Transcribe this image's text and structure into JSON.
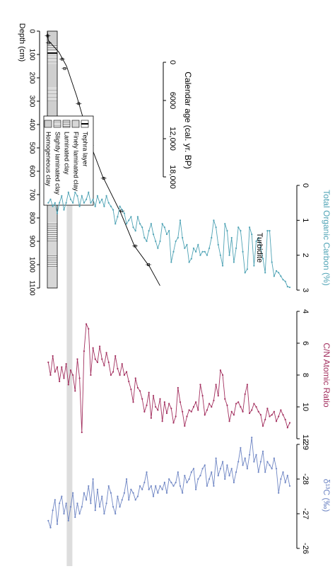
{
  "axis_titles": {
    "depth": "Depth (cm)",
    "age": "Calendar age (cal. yr. BP)",
    "toc": "Total Organic Carbon (%)",
    "cn": "C/N Atomic Ratio",
    "d13c": "δ¹³C (‰)"
  },
  "turbidite_label": "Turbidite",
  "legend": {
    "entries": [
      {
        "label": "Tephra layer",
        "pattern": "tephra"
      },
      {
        "label": "Finely laminated clay",
        "pattern": "fine"
      },
      {
        "label": "Laminated clay",
        "pattern": "laminated"
      },
      {
        "label": "Slightly laminated clay",
        "pattern": "slight"
      },
      {
        "label": "Homogeneous clay",
        "pattern": "homogeneous"
      }
    ]
  },
  "colors": {
    "toc": "#4fa3b5",
    "cn": "#a3305f",
    "d13c": "#6f86c4",
    "age_line": "#000000",
    "turbidite_band": "#dddddd",
    "core_base": "#cfcfcf",
    "axis": "#000000"
  },
  "chart_data": [
    {
      "type": "line",
      "panel": "age-depth",
      "title": "",
      "x_is": "depth_cm",
      "xlabel": "Depth (cm)",
      "ylabel": "Calendar age (cal. yr. BP)",
      "depth_ticks": [
        0,
        100,
        200,
        300,
        400,
        500,
        600,
        700,
        800,
        900,
        1000,
        1100
      ],
      "age_ticks": [
        0,
        6000,
        12000,
        18000
      ],
      "age_tick_labels": [
        "0",
        "6000",
        "12,000",
        "18,000"
      ],
      "xlim": [
        0,
        1100
      ],
      "ylim": [
        0,
        18000
      ],
      "x": [
        0,
        40,
        90,
        150,
        280,
        420,
        490,
        620,
        780,
        920,
        1010,
        1090
      ],
      "y": [
        0,
        150,
        1800,
        3000,
        4600,
        6100,
        6800,
        8600,
        11500,
        13600,
        16000,
        17600
      ],
      "dated_points": [
        {
          "depth": 20,
          "age": 50
        },
        {
          "depth": 50,
          "age": 200
        },
        {
          "depth": 120,
          "age": 2300
        },
        {
          "depth": 160,
          "age": 2700
        },
        {
          "depth": 310,
          "age": 4900
        },
        {
          "depth": 410,
          "age": 6100
        },
        {
          "depth": 490,
          "age": 6800
        },
        {
          "depth": 630,
          "age": 8800
        },
        {
          "depth": 770,
          "age": 11600
        },
        {
          "depth": 920,
          "age": 13700
        },
        {
          "depth": 1000,
          "age": 15800
        }
      ]
    },
    {
      "type": "line",
      "panel": "toc",
      "title": "",
      "xlabel": "Total Organic Carbon (%)",
      "xlim": [
        0,
        3
      ],
      "ticks": [
        0,
        1,
        2,
        3
      ],
      "depth": [
        0,
        10,
        20,
        30,
        40,
        50,
        60,
        70,
        80,
        90,
        100,
        110,
        120,
        130,
        140,
        150,
        160,
        170,
        180,
        190,
        200,
        210,
        220,
        230,
        240,
        250,
        260,
        270,
        280,
        290,
        300,
        310,
        320,
        330,
        340,
        350,
        360,
        370,
        380,
        390,
        400,
        410,
        420,
        430,
        440,
        450,
        460,
        470,
        480,
        490,
        500,
        510,
        520,
        530,
        540,
        550,
        560,
        570,
        580,
        590,
        600,
        610,
        620,
        630,
        640,
        650,
        660,
        670,
        680,
        690,
        700,
        710,
        720,
        730,
        740,
        750,
        760,
        770,
        780,
        790,
        800,
        810,
        820,
        830,
        840,
        850,
        860,
        870,
        880,
        890,
        900,
        910,
        920,
        930,
        940,
        950,
        960,
        970,
        980,
        990,
        1000,
        1010,
        1020,
        1030,
        1040,
        1050,
        1060,
        1070,
        1080
      ],
      "values": [
        2.92,
        2.9,
        2.75,
        2.7,
        2.6,
        2.5,
        2.45,
        2.6,
        2.2,
        1.3,
        1.3,
        2.5,
        2.1,
        1.8,
        1.5,
        1.6,
        2.3,
        1.4,
        1.2,
        2.4,
        2.5,
        1.9,
        1.3,
        1.2,
        1.8,
        2.2,
        1.5,
        2.0,
        1.3,
        1.1,
        2.3,
        2.0,
        1.7,
        1.2,
        1.0,
        1.5,
        1.8,
        2.0,
        1.9,
        1.9,
        2.0,
        1.7,
        1.9,
        1.8,
        2.1,
        2.2,
        1.7,
        1.8,
        1.5,
        1.0,
        1.5,
        1.6,
        1.9,
        2.2,
        1.3,
        1.4,
        1.2,
        1.1,
        1.6,
        1.8,
        1.6,
        1.4,
        1.1,
        1.3,
        1.6,
        1.5,
        1.2,
        1.1,
        0.9,
        1.3,
        1.2,
        0.9,
        1.0,
        1.1,
        0.8,
        0.7,
        0.6,
        0.9,
        1.1,
        0.7,
        0.6,
        0.5,
        0.3,
        0.6,
        0.4,
        0.5,
        0.3,
        0.6,
        0.4,
        0.5,
        0.2,
        0.4,
        0.5,
        0.3,
        0.6,
        0.3,
        0.2,
        0.5,
        0.4,
        0.2,
        0.5,
        0.7,
        0.3,
        0.5,
        0.8,
        0.5,
        0.6,
        0.4,
        0.5
      ]
    },
    {
      "type": "line",
      "panel": "cn",
      "title": "",
      "xlabel": "C/N Atomic Ratio",
      "xlim": [
        4,
        12
      ],
      "ticks": [
        4,
        6,
        8,
        10,
        12
      ],
      "depth": [
        0,
        10,
        20,
        30,
        40,
        50,
        60,
        70,
        80,
        90,
        100,
        110,
        120,
        130,
        140,
        150,
        160,
        170,
        180,
        190,
        200,
        210,
        220,
        230,
        240,
        250,
        260,
        270,
        280,
        290,
        300,
        310,
        320,
        330,
        340,
        350,
        360,
        370,
        380,
        390,
        400,
        410,
        420,
        430,
        440,
        450,
        460,
        470,
        480,
        490,
        500,
        510,
        520,
        530,
        540,
        550,
        560,
        570,
        580,
        590,
        600,
        610,
        620,
        630,
        640,
        650,
        660,
        670,
        680,
        690,
        700,
        710,
        720,
        730,
        740,
        750,
        760,
        770,
        780,
        790,
        800,
        810,
        820,
        830,
        840,
        850,
        860,
        870,
        880,
        890,
        900,
        910,
        920,
        930,
        940,
        950,
        960,
        970,
        980,
        990,
        1000,
        1010,
        1020,
        1030,
        1040,
        1050,
        1060,
        1070,
        1080
      ],
      "values": [
        11.0,
        11.3,
        10.8,
        10.5,
        10.2,
        10.6,
        10.9,
        10.3,
        10.5,
        10.6,
        10.1,
        10.8,
        11.2,
        10.5,
        10.3,
        10.0,
        9.8,
        10.2,
        10.4,
        8.6,
        9.2,
        10.3,
        10.0,
        9.7,
        9.8,
        10.5,
        10.3,
        10.9,
        9.9,
        9.5,
        8.0,
        7.7,
        9.3,
        8.6,
        9.6,
        10.0,
        9.8,
        10.2,
        10.5,
        9.3,
        8.6,
        10.2,
        9.7,
        10.0,
        10.3,
        10.2,
        10.6,
        11.2,
        10.3,
        9.7,
        8.8,
        10.6,
        11.0,
        10.1,
        9.8,
        10.4,
        9.7,
        10.9,
        9.5,
        10.2,
        10.0,
        9.3,
        10.7,
        9.1,
        9.9,
        10.3,
        9.5,
        9.0,
        8.8,
        8.2,
        9.7,
        8.9,
        8.4,
        7.8,
        8.0,
        7.3,
        8.0,
        7.6,
        6.8,
        7.8,
        8.0,
        7.2,
        6.6,
        7.4,
        7.0,
        6.2,
        7.2,
        7.0,
        6.3,
        8.0,
        5.1,
        4.8,
        6.5,
        11.6,
        8.2,
        7.0,
        9.0,
        8.0,
        7.7,
        8.6,
        7.3,
        8.2,
        7.5,
        8.4,
        7.5,
        7.8,
        6.8,
        8.0,
        7.2
      ]
    },
    {
      "type": "line",
      "panel": "d13c",
      "title": "",
      "xlabel": "δ¹³C (‰)",
      "xlim": [
        -29,
        -26
      ],
      "ticks": [
        -29,
        -28,
        -27,
        -26
      ],
      "tick_labels": [
        "-29",
        "-28",
        "-27",
        "-26"
      ],
      "depth": [
        0,
        10,
        20,
        30,
        40,
        50,
        60,
        70,
        80,
        90,
        100,
        110,
        120,
        130,
        140,
        150,
        160,
        170,
        180,
        190,
        200,
        210,
        220,
        230,
        240,
        250,
        260,
        270,
        280,
        290,
        300,
        310,
        320,
        330,
        340,
        350,
        360,
        370,
        380,
        390,
        400,
        410,
        420,
        430,
        440,
        450,
        460,
        470,
        480,
        490,
        500,
        510,
        520,
        530,
        540,
        550,
        560,
        570,
        580,
        590,
        600,
        610,
        620,
        630,
        640,
        650,
        660,
        670,
        680,
        690,
        700,
        710,
        720,
        730,
        740,
        750,
        760,
        770,
        780,
        790,
        800,
        810,
        820,
        830,
        840,
        850,
        860,
        870,
        880,
        890,
        900,
        910,
        920,
        930,
        940,
        950,
        960,
        970,
        980,
        990,
        1000,
        1010,
        1020,
        1030,
        1040,
        1050,
        1060,
        1070,
        1080
      ],
      "values": [
        -27.8,
        -28.1,
        -27.9,
        -28.2,
        -28.0,
        -27.6,
        -28.3,
        -28.6,
        -28.3,
        -28.4,
        -28.5,
        -28.2,
        -28.8,
        -28.5,
        -28.2,
        -28.7,
        -28.5,
        -29.2,
        -28.7,
        -28.3,
        -28.6,
        -28.4,
        -28.9,
        -28.5,
        -28.2,
        -27.9,
        -28.3,
        -28.1,
        -28.4,
        -28.0,
        -28.5,
        -28.3,
        -28.1,
        -28.6,
        -27.8,
        -28.2,
        -28.0,
        -27.8,
        -28.4,
        -28.3,
        -28.1,
        -28.0,
        -27.7,
        -28.3,
        -28.2,
        -28.0,
        -27.9,
        -28.1,
        -27.6,
        -27.8,
        -28.2,
        -27.9,
        -27.8,
        -27.9,
        -28.0,
        -27.6,
        -27.9,
        -27.7,
        -27.8,
        -27.6,
        -27.8,
        -27.5,
        -27.8,
        -27.7,
        -28.2,
        -27.9,
        -27.7,
        -27.8,
        -27.5,
        -27.4,
        -27.6,
        -27.7,
        -27.4,
        -28.0,
        -27.6,
        -27.4,
        -27.2,
        -27.5,
        -27.0,
        -27.2,
        -27.6,
        -27.8,
        -27.3,
        -27.0,
        -27.5,
        -27.2,
        -27.7,
        -27.1,
        -28.0,
        -27.3,
        -27.8,
        -27.4,
        -27.6,
        -27.2,
        -27.0,
        -27.3,
        -26.9,
        -27.6,
        -27.2,
        -26.8,
        -27.3,
        -27.0,
        -27.5,
        -27.3,
        -26.7,
        -27.4,
        -27.1,
        -26.6,
        -26.8
      ]
    },
    {
      "type": "table",
      "panel": "lithology",
      "title": "",
      "layers": [
        {
          "from": 0,
          "to": 60,
          "pattern": "homogeneous"
        },
        {
          "from": 60,
          "to": 88,
          "pattern": "laminated"
        },
        {
          "from": 88,
          "to": 100,
          "pattern": "tephra"
        },
        {
          "from": 100,
          "to": 140,
          "pattern": "slight"
        },
        {
          "from": 140,
          "to": 240,
          "pattern": "homogeneous"
        },
        {
          "from": 240,
          "to": 300,
          "pattern": "slight"
        },
        {
          "from": 300,
          "to": 420,
          "pattern": "homogeneous"
        },
        {
          "from": 420,
          "to": 520,
          "pattern": "slight"
        },
        {
          "from": 520,
          "to": 640,
          "pattern": "homogeneous"
        },
        {
          "from": 640,
          "to": 720,
          "pattern": "laminated"
        },
        {
          "from": 720,
          "to": 820,
          "pattern": "fine"
        },
        {
          "from": 820,
          "to": 900,
          "pattern": "laminated"
        },
        {
          "from": 900,
          "to": 960,
          "pattern": "fine"
        },
        {
          "from": 960,
          "to": 1010,
          "pattern": "laminated"
        },
        {
          "from": 1010,
          "to": 1100,
          "pattern": "fine"
        }
      ],
      "turbidite_depth": 985
    }
  ]
}
